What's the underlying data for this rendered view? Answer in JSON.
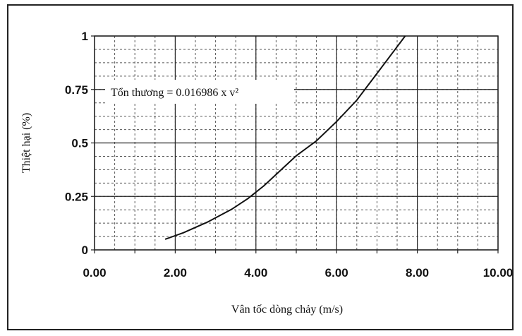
{
  "chart_data": {
    "type": "line",
    "title": "",
    "xlabel": "Vân tốc dòng chảy (m/s)",
    "ylabel": "Thiệt hại (%)",
    "xlim": [
      0,
      10
    ],
    "ylim": [
      0,
      1
    ],
    "x_ticks": [
      "0.00",
      "2.00",
      "4.00",
      "6.00",
      "8.00",
      "10.00"
    ],
    "y_ticks": [
      "0",
      "0.25",
      "0.5",
      "0.75",
      "1"
    ],
    "grid": true,
    "annotation": "Tổn thương = 0.016986 x v²",
    "series": [
      {
        "x": [
          1.75,
          2.2,
          2.8,
          3.4,
          3.8,
          4.2,
          4.6,
          5.0,
          5.5,
          6.0,
          6.5,
          6.9,
          7.3,
          7.7
        ],
        "y": [
          0.05,
          0.08,
          0.13,
          0.19,
          0.24,
          0.3,
          0.37,
          0.44,
          0.51,
          0.6,
          0.7,
          0.8,
          0.9,
          1.0
        ]
      }
    ]
  }
}
